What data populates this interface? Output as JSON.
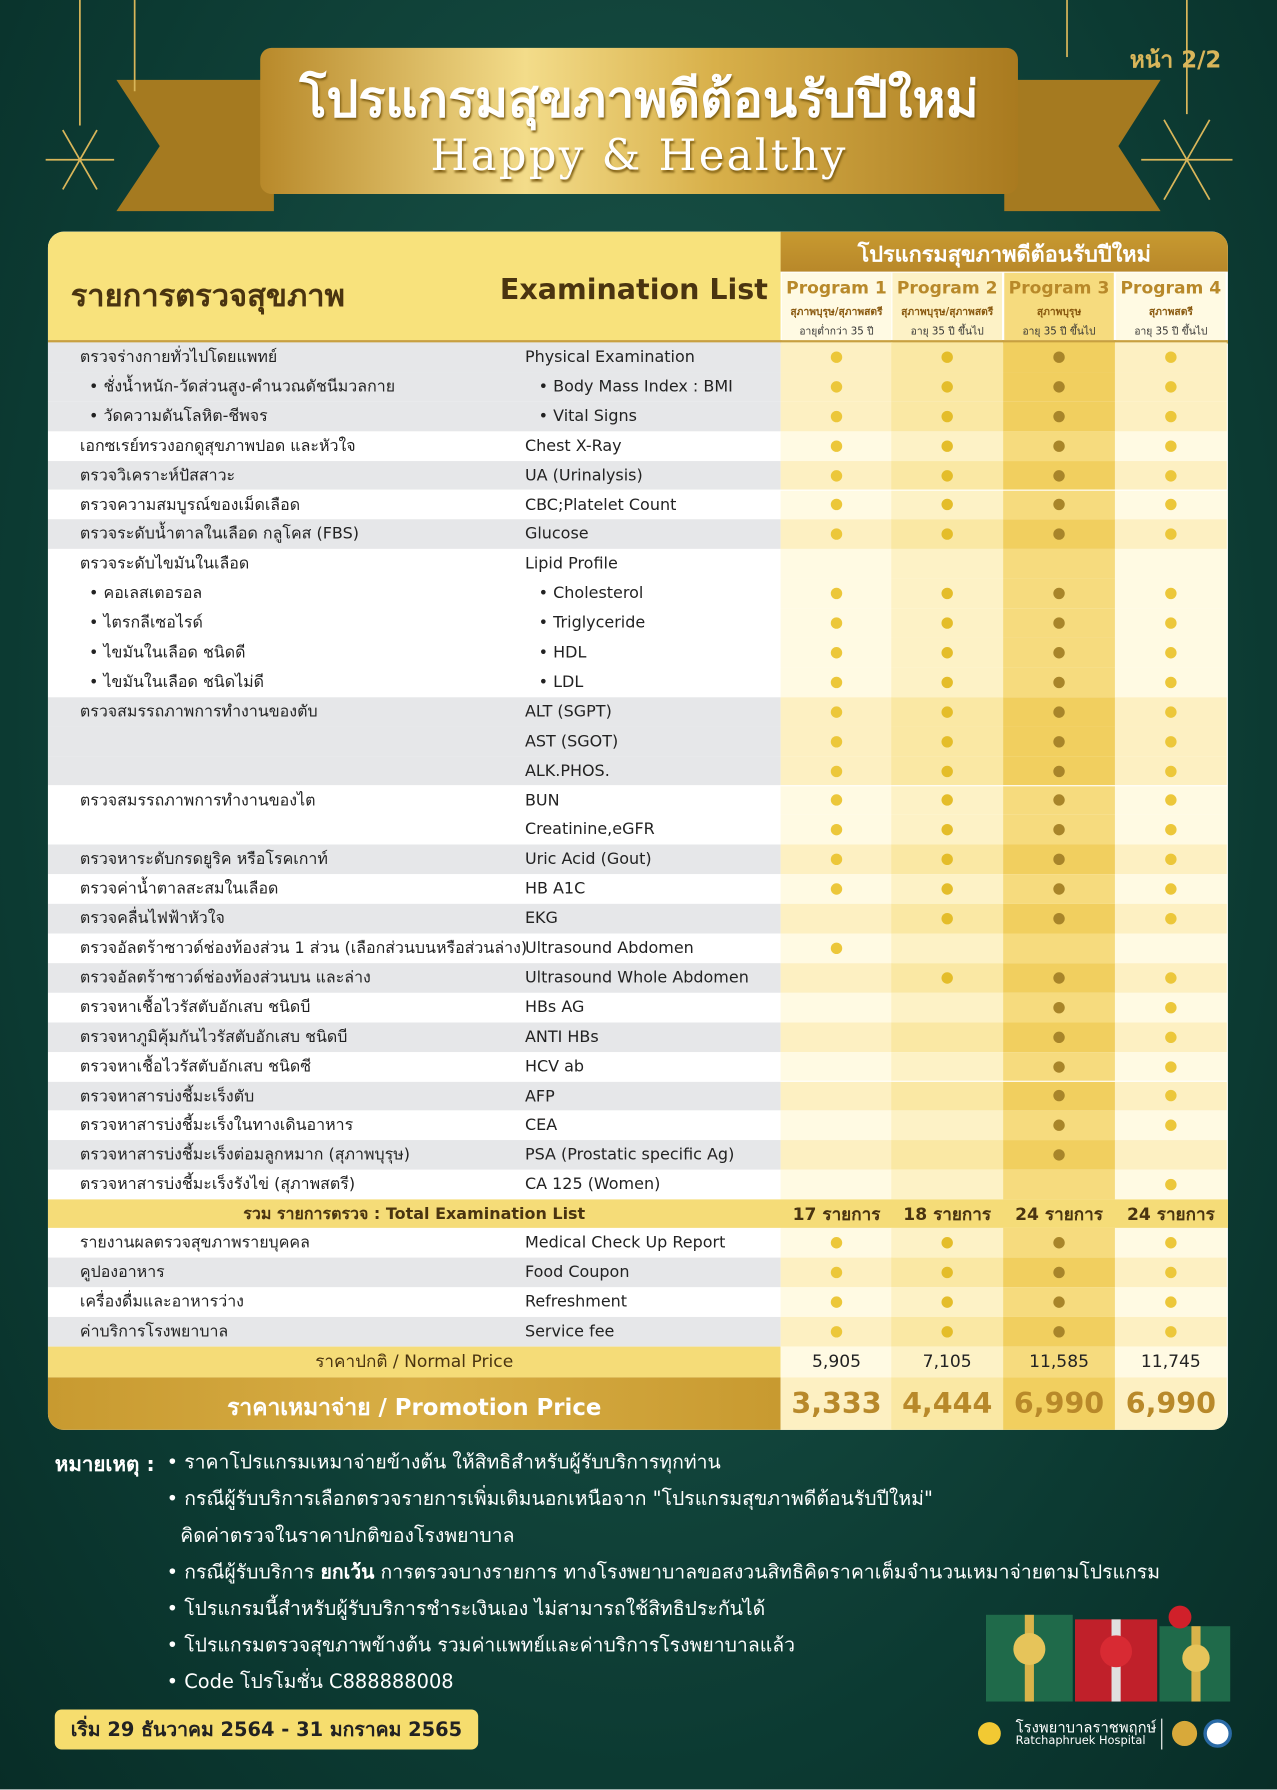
{
  "page_label": "หน้า 2/2",
  "header": {
    "title": "โปรแกรมสุขภาพดีต้อนรับปีใหม่",
    "subtitle": "Happy & Healthy"
  },
  "table": {
    "col_th": "รายการตรวจสุขภาพ",
    "col_en": "Examination List",
    "programs_title": "โปรแกรมสุขภาพดีต้อนรับปีใหม่",
    "programs": [
      {
        "name": "Program 1",
        "gender": "สุภาพบุรุษ/สุภาพสตรี",
        "age": "อายุต่ำกว่า 35 ปี"
      },
      {
        "name": "Program 2",
        "gender": "สุภาพบุรุษ/สุภาพสตรี",
        "age": "อายุ 35 ปี ขึ้นไป"
      },
      {
        "name": "Program 3",
        "gender": "สุภาพบุรุษ",
        "age": "อายุ 35 ปี ขึ้นไป"
      },
      {
        "name": "Program 4",
        "gender": "สุภาพสตรี",
        "age": "อายุ 35 ปี ขึ้นไป"
      }
    ],
    "exam_groups": [
      {
        "rows": [
          {
            "th": "ตรวจร่างกายทั่วไปโดยแพทย์",
            "en": "Physical Examination",
            "included": [
              true,
              true,
              true,
              true
            ]
          },
          {
            "th": "• ชั่งน้ำหนัก-วัดส่วนสูง-คำนวณดัชนีมวลกาย",
            "en": "• Body Mass Index : BMI",
            "included": [
              true,
              true,
              true,
              true
            ],
            "indent": true
          },
          {
            "th": "• วัดความดันโลหิต-ชีพจร",
            "en": "• Vital Signs",
            "included": [
              true,
              true,
              true,
              true
            ],
            "indent": true
          }
        ]
      },
      {
        "rows": [
          {
            "th": "เอกซเรย์ทรวงอกดูสุขภาพปอด และหัวใจ",
            "en": "Chest X-Ray",
            "included": [
              true,
              true,
              true,
              true
            ]
          }
        ]
      },
      {
        "rows": [
          {
            "th": "ตรวจวิเคราะห์ปัสสาวะ",
            "en": "UA (Urinalysis)",
            "included": [
              true,
              true,
              true,
              true
            ]
          }
        ]
      },
      {
        "rows": [
          {
            "th": "ตรวจความสมบูรณ์ของเม็ดเลือด",
            "en": "CBC;Platelet Count",
            "included": [
              true,
              true,
              true,
              true
            ]
          }
        ]
      },
      {
        "rows": [
          {
            "th": "ตรวจระดับน้ำตาลในเลือด กลูโคส (FBS)",
            "en": "Glucose",
            "included": [
              true,
              true,
              true,
              true
            ]
          }
        ]
      },
      {
        "rows": [
          {
            "th": "ตรวจระดับไขมันในเลือด",
            "en": "Lipid Profile",
            "included": [
              false,
              false,
              false,
              false
            ]
          },
          {
            "th": "• คอเลสเตอรอล",
            "en": "• Cholesterol",
            "included": [
              true,
              true,
              true,
              true
            ],
            "indent": true
          },
          {
            "th": "• ไตรกลีเซอไรด์",
            "en": "• Triglyceride",
            "included": [
              true,
              true,
              true,
              true
            ],
            "indent": true
          },
          {
            "th": "• ไขมันในเลือด ชนิดดี",
            "en": "• HDL",
            "included": [
              true,
              true,
              true,
              true
            ],
            "indent": true
          },
          {
            "th": "• ไขมันในเลือด ชนิดไม่ดี",
            "en": "• LDL",
            "included": [
              true,
              true,
              true,
              true
            ],
            "indent": true
          }
        ]
      },
      {
        "rows": [
          {
            "th": "ตรวจสมรรถภาพการทำงานของตับ",
            "en": "ALT (SGPT)",
            "included": [
              true,
              true,
              true,
              true
            ]
          },
          {
            "en": "AST (SGOT)",
            "included": [
              true,
              true,
              true,
              true
            ]
          },
          {
            "en": "ALK.PHOS.",
            "included": [
              true,
              true,
              true,
              true
            ]
          }
        ]
      },
      {
        "rows": [
          {
            "th": "ตรวจสมรรถภาพการทำงานของไต",
            "en": "BUN",
            "included": [
              true,
              true,
              true,
              true
            ]
          },
          {
            "en": "Creatinine,eGFR",
            "included": [
              true,
              true,
              true,
              true
            ]
          }
        ]
      },
      {
        "rows": [
          {
            "th": "ตรวจหาระดับกรดยูริค หรือโรคเกาท์",
            "en": "Uric Acid (Gout)",
            "included": [
              true,
              true,
              true,
              true
            ]
          }
        ]
      },
      {
        "rows": [
          {
            "th": "ตรวจค่าน้ำตาลสะสมในเลือด",
            "en": "HB A1C",
            "included": [
              true,
              true,
              true,
              true
            ]
          }
        ]
      },
      {
        "rows": [
          {
            "th": "ตรวจคลื่นไฟฟ้าหัวใจ",
            "en": "EKG",
            "included": [
              false,
              true,
              true,
              true
            ]
          }
        ]
      },
      {
        "rows": [
          {
            "th": "ตรวจอัลตร้าซาวด์ช่องท้องส่วน 1 ส่วน (เลือกส่วนบนหรือส่วนล่าง)",
            "en": "Ultrasound Abdomen",
            "included": [
              true,
              false,
              false,
              false
            ]
          }
        ]
      },
      {
        "rows": [
          {
            "th": "ตรวจอัลตร้าซาวด์ช่องท้องส่วนบน และล่าง",
            "en": "Ultrasound Whole  Abdomen",
            "included": [
              false,
              true,
              true,
              true
            ]
          }
        ]
      },
      {
        "rows": [
          {
            "th": "ตรวจหาเชื้อไวรัสตับอักเสบ ชนิดบี",
            "en": "HBs AG",
            "included": [
              false,
              false,
              true,
              true
            ]
          }
        ]
      },
      {
        "rows": [
          {
            "th": "ตรวจหาภูมิคุ้มกันไวรัสตับอักเสบ ชนิดบี",
            "en": "ANTI HBs",
            "included": [
              false,
              false,
              true,
              true
            ]
          }
        ]
      },
      {
        "rows": [
          {
            "th": "ตรวจหาเชื้อไวรัสตับอักเสบ ชนิดซี",
            "en": "HCV ab",
            "included": [
              false,
              false,
              true,
              true
            ]
          }
        ]
      },
      {
        "rows": [
          {
            "th": "ตรวจหาสารบ่งชี้มะเร็งตับ",
            "en": "AFP",
            "included": [
              false,
              false,
              true,
              true
            ]
          }
        ]
      },
      {
        "rows": [
          {
            "th": "ตรวจหาสารบ่งชี้มะเร็งในทางเดินอาหาร",
            "en": "CEA",
            "included": [
              false,
              false,
              true,
              true
            ]
          }
        ]
      },
      {
        "rows": [
          {
            "th": "ตรวจหาสารบ่งชี้มะเร็งต่อมลูกหมาก (สุภาพบุรุษ)",
            "en": "PSA (Prostatic specific Ag)",
            "included": [
              false,
              false,
              true,
              false
            ]
          }
        ]
      },
      {
        "rows": [
          {
            "th": "ตรวจหาสารบ่งชี้มะเร็งรังไข่ (สุภาพสตรี)",
            "en": "CA 125 (Women)",
            "included": [
              false,
              false,
              false,
              true
            ]
          }
        ]
      }
    ],
    "total": {
      "label": "รวม รายการตรวจ : Total Examination List",
      "counts": [
        "17 รายการ",
        "18 รายการ",
        "24 รายการ",
        "24 รายการ"
      ]
    },
    "extras": [
      {
        "th": "รายงานผลตรวจสุขภาพรายบุคคล",
        "en": "Medical Check Up Report",
        "included": [
          true,
          true,
          true,
          true
        ]
      },
      {
        "th": "คูปองอาหาร",
        "en": "Food Coupon",
        "included": [
          true,
          true,
          true,
          true
        ]
      },
      {
        "th": "เครื่องดื่มและอาหารว่าง",
        "en": "Refreshment",
        "included": [
          true,
          true,
          true,
          true
        ]
      },
      {
        "th": "ค่าบริการโรงพยาบาล",
        "en": "Service fee",
        "included": [
          true,
          true,
          true,
          true
        ]
      }
    ],
    "normal_price": {
      "label": "ราคาปกติ / Normal Price",
      "prices": [
        "5,905",
        "7,105",
        "11,585",
        "11,745"
      ]
    },
    "promo_price": {
      "label": "ราคาเหมาจ่าย / Promotion Price",
      "prices": [
        "3,333",
        "4,444",
        "6,990",
        "6,990"
      ]
    }
  },
  "notes": {
    "heading": "หมายเหตุ :",
    "items": [
      {
        "parts": [
          "• ราคาโปรแกรมเหมาจ่ายข้างต้น ให้สิทธิสำหรับผู้รับบริการทุกท่าน"
        ]
      },
      {
        "parts": [
          "• กรณีผู้รับบริการเลือกตรวจรายการเพิ่มเติมนอกเหนือจาก \"โปรแกรมสุขภาพดีต้อนรับปีใหม่\""
        ],
        "line2": "คิดค่าตรวจในราคาปกติของโรงพยาบาล"
      },
      {
        "parts": [
          "• กรณีผู้รับบริการ ",
          "ยกเว้น",
          " การตรวจบางรายการ ทางโรงพยาบาลขอสงวนสิทธิคิดราคาเต็มจำนวนเหมาจ่ายตามโปรแกรม"
        ]
      },
      {
        "parts": [
          "• โปรแกรมนี้สำหรับผู้รับบริการชำระเงินเอง ไม่สามารถใช้สิทธิประกันได้"
        ]
      },
      {
        "parts": [
          "• โปรแกรมตรวจสุขภาพข้างต้น รวมค่าแพทย์และค่าบริการโรงพยาบาลแล้ว"
        ]
      },
      {
        "parts": [
          "• Code โปรโมชั่น C888888008"
        ]
      }
    ]
  },
  "period": "เริ่ม 29 ธันวาคม 2564 - 31 มกราคม 2565",
  "hospital": {
    "name_th": "โรงพยาบาลราชพฤกษ์",
    "name_en": "Ratchaphruek Hospital"
  }
}
